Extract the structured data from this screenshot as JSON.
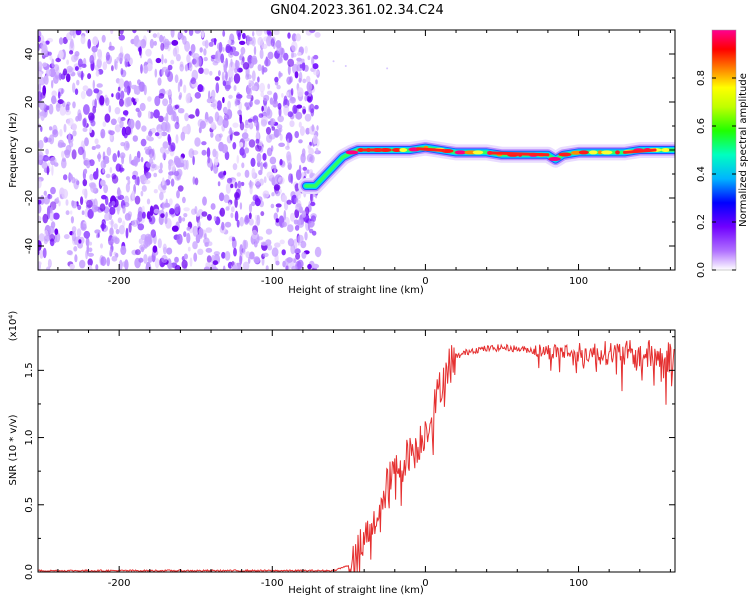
{
  "figure_title": "GN04.2023.361.02.34.C24",
  "chart_data": [
    {
      "type": "heatmap",
      "xlabel": "Height of straight line (km)",
      "ylabel": "Frequency (Hz)",
      "xlim": [
        -253,
        163
      ],
      "ylim": [
        -50,
        50
      ],
      "xticks": [
        -200,
        -100,
        0,
        100
      ],
      "xtick_labels": [
        "-200",
        "-100",
        "0",
        "100"
      ],
      "yticks": [
        -40,
        -20,
        0,
        20,
        40
      ],
      "ytick_labels": [
        "-40",
        "-20",
        "0",
        "20",
        "40"
      ],
      "colorbar": {
        "label": "Normalized spectral amplitude",
        "range": [
          0,
          1
        ],
        "ticks": [
          0.0,
          0.2,
          0.4,
          0.6,
          0.8
        ],
        "tick_labels": [
          "0.0",
          "0.2",
          "0.4",
          "0.6",
          "0.8"
        ],
        "colormap": "rainbow",
        "colors": [
          "#ffffff",
          "#8000ff",
          "#0000ff",
          "#00c8ff",
          "#00ff80",
          "#40ff00",
          "#ffff00",
          "#ff8000",
          "#ff0000",
          "#ff0080"
        ]
      },
      "noise_region": {
        "x_from": -253,
        "x_to": -70,
        "freq_from": -50,
        "freq_to": 50,
        "amplitude_range": [
          0.0,
          0.25
        ]
      },
      "signal_ridge": {
        "x": [
          -78,
          -72,
          -66,
          -60,
          -54,
          -48,
          -44,
          -40,
          -30,
          -20,
          -10,
          0,
          10,
          20,
          30,
          40,
          50,
          60,
          70,
          80,
          85,
          90,
          100,
          110,
          120,
          130,
          140,
          150,
          163
        ],
        "freq": [
          -15,
          -15,
          -11,
          -7,
          -3,
          -1,
          0,
          0,
          0,
          0,
          0,
          1,
          0,
          -1,
          -1,
          -1,
          -2,
          -2,
          -2,
          -2,
          -4,
          -2,
          -1,
          -1,
          -1,
          -1,
          0,
          0,
          0
        ]
      },
      "grid": false
    },
    {
      "type": "line",
      "xlabel": "Height of straight line (km)",
      "ylabel": "SNR (10 * v/v)",
      "y_scale_label": "(x10⁴)",
      "xlim": [
        -253,
        163
      ],
      "ylim": [
        0,
        1.8
      ],
      "xticks": [
        -200,
        -100,
        0,
        100
      ],
      "xtick_labels": [
        "-200",
        "-100",
        "0",
        "100"
      ],
      "yticks": [
        0.0,
        0.5,
        1.0,
        1.5
      ],
      "ytick_labels": [
        "0.0",
        "0.5",
        "1.0",
        "1.5"
      ],
      "color": "#e53030",
      "series": [
        {
          "x": [
            -253,
            -200,
            -150,
            -100,
            -60,
            -50,
            -45,
            -40,
            -35,
            -30,
            -25,
            -20,
            -15,
            -10,
            -5,
            0,
            5,
            10,
            15,
            20,
            30,
            40,
            50,
            60,
            70,
            80,
            90,
            100,
            110,
            120,
            130,
            140,
            150,
            163
          ],
          "values": [
            0.01,
            0.01,
            0.01,
            0.01,
            0.01,
            0.05,
            0.12,
            0.25,
            0.35,
            0.45,
            0.65,
            0.75,
            0.8,
            0.9,
            0.95,
            1.05,
            1.2,
            1.4,
            1.55,
            1.6,
            1.65,
            1.66,
            1.67,
            1.66,
            1.65,
            1.64,
            1.64,
            1.63,
            1.63,
            1.63,
            1.62,
            1.62,
            1.61,
            1.6
          ]
        }
      ],
      "grid": false
    }
  ]
}
